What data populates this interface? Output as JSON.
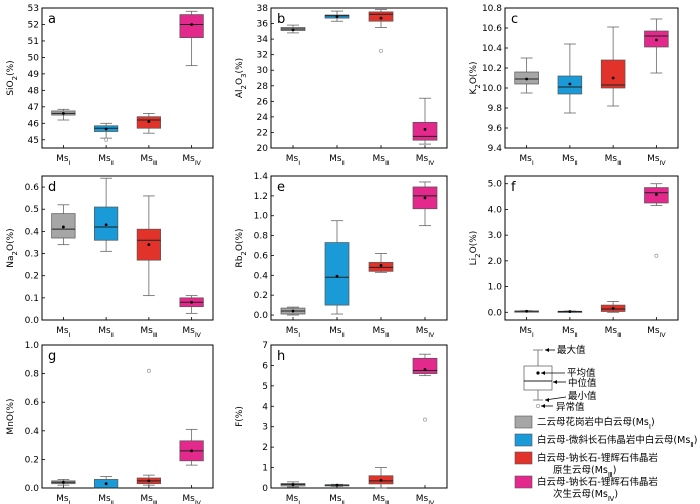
{
  "chart_data": {
    "type": "box",
    "categories": [
      {
        "main": "Ms",
        "sub": "Ⅰ"
      },
      {
        "main": "Ms",
        "sub": "Ⅱ"
      },
      {
        "main": "Ms",
        "sub": "Ⅲ"
      },
      {
        "main": "Ms",
        "sub": "Ⅳ"
      }
    ],
    "group_colors": [
      "#a6a6a6",
      "#1a9ad6",
      "#e2332b",
      "#e32a8c"
    ],
    "panels": [
      {
        "letter": "a",
        "ylabel": {
          "pre": "SiO",
          "sub": "2",
          "post": "(%)"
        },
        "ylim": [
          44.5,
          53
        ],
        "ticks": [
          45,
          46,
          47,
          48,
          49,
          50,
          51,
          52,
          53
        ],
        "boxes": [
          {
            "min": 46.2,
            "q1": 46.5,
            "median": 46.6,
            "q3": 46.75,
            "max": 46.85,
            "mean": 46.6,
            "outliers": []
          },
          {
            "min": 45.1,
            "q1": 45.5,
            "median": 45.7,
            "q3": 45.85,
            "max": 46.0,
            "mean": 45.65,
            "outliers": [
              45.0
            ]
          },
          {
            "min": 45.4,
            "q1": 45.7,
            "median": 46.2,
            "q3": 46.4,
            "max": 46.6,
            "mean": 46.1,
            "outliers": []
          },
          {
            "min": 49.5,
            "q1": 51.2,
            "median": 52.0,
            "q3": 52.6,
            "max": 52.8,
            "mean": 52.0,
            "outliers": []
          }
        ]
      },
      {
        "letter": "b",
        "ylabel": {
          "pre": "Al",
          "sub": "2",
          "post": "O",
          "sub2": "3",
          "post2": "(%)"
        },
        "ylim": [
          20,
          38
        ],
        "ticks": [
          20,
          22,
          24,
          26,
          28,
          30,
          32,
          34,
          36,
          38
        ],
        "boxes": [
          {
            "min": 34.8,
            "q1": 35.1,
            "median": 35.3,
            "q3": 35.5,
            "max": 35.8,
            "mean": 35.2,
            "outliers": []
          },
          {
            "min": 36.3,
            "q1": 36.7,
            "median": 37.0,
            "q3": 37.1,
            "max": 37.6,
            "mean": 36.9,
            "outliers": []
          },
          {
            "min": 35.5,
            "q1": 36.3,
            "median": 37.2,
            "q3": 37.5,
            "max": 37.8,
            "mean": 36.7,
            "outliers": [
              32.5
            ]
          },
          {
            "min": 20.5,
            "q1": 21.0,
            "median": 21.5,
            "q3": 23.3,
            "max": 26.4,
            "mean": 22.4,
            "outliers": []
          }
        ]
      },
      {
        "letter": "c",
        "ylabel": {
          "pre": "K",
          "sub": "2",
          "post": "O(%)"
        },
        "ylim": [
          9.4,
          10.8
        ],
        "ticks": [
          9.4,
          9.6,
          9.8,
          10.0,
          10.2,
          10.4,
          10.6,
          10.8
        ],
        "tick_decimals": 1,
        "boxes": [
          {
            "min": 9.95,
            "q1": 10.04,
            "median": 10.09,
            "q3": 10.16,
            "max": 10.3,
            "mean": 10.09,
            "outliers": []
          },
          {
            "min": 9.75,
            "q1": 9.94,
            "median": 10.01,
            "q3": 10.12,
            "max": 10.44,
            "mean": 10.04,
            "outliers": []
          },
          {
            "min": 9.82,
            "q1": 10.0,
            "median": 10.03,
            "q3": 10.28,
            "max": 10.61,
            "mean": 10.1,
            "outliers": []
          },
          {
            "min": 10.15,
            "q1": 10.41,
            "median": 10.52,
            "q3": 10.57,
            "max": 10.69,
            "mean": 10.48,
            "outliers": []
          }
        ]
      },
      {
        "letter": "d",
        "ylabel": {
          "pre": "Na",
          "sub": "2",
          "post": "O(%)"
        },
        "ylim": [
          0,
          0.65
        ],
        "ticks": [
          0.0,
          0.1,
          0.2,
          0.3,
          0.4,
          0.5,
          0.6
        ],
        "tick_decimals": 1,
        "boxes": [
          {
            "min": 0.34,
            "q1": 0.37,
            "median": 0.41,
            "q3": 0.48,
            "max": 0.52,
            "mean": 0.42,
            "outliers": []
          },
          {
            "min": 0.31,
            "q1": 0.36,
            "median": 0.42,
            "q3": 0.51,
            "max": 0.64,
            "mean": 0.43,
            "outliers": []
          },
          {
            "min": 0.11,
            "q1": 0.27,
            "median": 0.36,
            "q3": 0.41,
            "max": 0.56,
            "mean": 0.34,
            "outliers": []
          },
          {
            "min": 0.03,
            "q1": 0.06,
            "median": 0.08,
            "q3": 0.1,
            "max": 0.11,
            "mean": 0.08,
            "outliers": []
          }
        ]
      },
      {
        "letter": "e",
        "ylabel": {
          "pre": "Rb",
          "sub": "2",
          "post": "O(%)"
        },
        "ylim": [
          -0.05,
          1.4
        ],
        "ticks": [
          0.0,
          0.2,
          0.4,
          0.6,
          0.8,
          1.0,
          1.2,
          1.4
        ],
        "tick_decimals": 1,
        "boxes": [
          {
            "min": 0.0,
            "q1": 0.01,
            "median": 0.04,
            "q3": 0.07,
            "max": 0.08,
            "mean": 0.04,
            "outliers": []
          },
          {
            "min": 0.01,
            "q1": 0.1,
            "median": 0.38,
            "q3": 0.73,
            "max": 0.95,
            "mean": 0.39,
            "outliers": []
          },
          {
            "min": 0.43,
            "q1": 0.44,
            "median": 0.48,
            "q3": 0.53,
            "max": 0.62,
            "mean": 0.5,
            "outliers": []
          },
          {
            "min": 0.9,
            "q1": 1.07,
            "median": 1.2,
            "q3": 1.29,
            "max": 1.34,
            "mean": 1.18,
            "outliers": []
          }
        ]
      },
      {
        "letter": "f",
        "ylabel": {
          "pre": "Li",
          "sub": "2",
          "post": "O(%)"
        },
        "ylim": [
          -0.3,
          5.3
        ],
        "ticks": [
          0.0,
          1.0,
          2.0,
          3.0,
          4.0,
          5.0
        ],
        "tick_decimals": 1,
        "boxes": [
          {
            "min": 0.02,
            "q1": 0.03,
            "median": 0.04,
            "q3": 0.05,
            "max": 0.06,
            "mean": 0.04,
            "outliers": []
          },
          {
            "min": 0.01,
            "q1": 0.02,
            "median": 0.03,
            "q3": 0.04,
            "max": 0.05,
            "mean": 0.03,
            "outliers": []
          },
          {
            "min": 0.0,
            "q1": 0.03,
            "median": 0.13,
            "q3": 0.28,
            "max": 0.42,
            "mean": 0.15,
            "outliers": []
          },
          {
            "min": 4.15,
            "q1": 4.25,
            "median": 4.65,
            "q3": 4.85,
            "max": 5.0,
            "mean": 4.58,
            "outliers": [
              2.2
            ]
          }
        ]
      },
      {
        "letter": "g",
        "ylabel": {
          "pre": "MnO(%)"
        },
        "ylim": [
          0,
          1.0
        ],
        "ticks": [
          0.0,
          0.2,
          0.4,
          0.6,
          0.8,
          1.0
        ],
        "tick_decimals": 1,
        "boxes": [
          {
            "min": 0.02,
            "q1": 0.03,
            "median": 0.04,
            "q3": 0.05,
            "max": 0.06,
            "mean": 0.04,
            "outliers": []
          },
          {
            "min": 0.0,
            "q1": 0.0,
            "median": 0.0,
            "q3": 0.06,
            "max": 0.08,
            "mean": 0.03,
            "outliers": []
          },
          {
            "min": 0.02,
            "q1": 0.03,
            "median": 0.05,
            "q3": 0.07,
            "max": 0.09,
            "mean": 0.05,
            "outliers": [
              0.82
            ]
          },
          {
            "min": 0.16,
            "q1": 0.19,
            "median": 0.26,
            "q3": 0.33,
            "max": 0.41,
            "mean": 0.26,
            "outliers": []
          }
        ]
      },
      {
        "letter": "h",
        "ylabel": {
          "pre": "F(%)"
        },
        "ylim": [
          0,
          7
        ],
        "ticks": [
          0,
          1,
          2,
          3,
          4,
          5,
          6,
          7
        ],
        "tick_decimals": 0,
        "boxes": [
          {
            "min": 0.05,
            "q1": 0.1,
            "median": 0.18,
            "q3": 0.22,
            "max": 0.3,
            "mean": 0.17,
            "outliers": []
          },
          {
            "min": 0.08,
            "q1": 0.12,
            "median": 0.14,
            "q3": 0.16,
            "max": 0.18,
            "mean": 0.14,
            "outliers": []
          },
          {
            "min": 0.0,
            "q1": 0.2,
            "median": 0.35,
            "q3": 0.6,
            "max": 1.0,
            "mean": 0.38,
            "outliers": []
          },
          {
            "min": 5.5,
            "q1": 5.6,
            "median": 5.75,
            "q3": 6.35,
            "max": 6.55,
            "mean": 5.8,
            "outliers": [
              3.35
            ]
          }
        ]
      }
    ],
    "key": {
      "labels": [
        "最大值",
        "平均值",
        "中位值",
        "最小值",
        "异常值"
      ]
    },
    "legend": [
      {
        "line1": "二云母花岗岩中白云母(Ms",
        "sub1": "Ⅰ",
        "end1": ")",
        "color": "#a6a6a6"
      },
      {
        "line1": "白云母-微斜长石伟晶岩中白云母(Ms",
        "sub1": "Ⅱ",
        "end1": ")",
        "color": "#1a9ad6"
      },
      {
        "line1": "白云母-钠长石-锂辉石伟晶岩",
        "line2": "原生云母(Ms",
        "sub2": "Ⅲ",
        "end2": ")",
        "color": "#e2332b"
      },
      {
        "line1": "白云母-钠长石-锂辉石伟晶岩",
        "line2": "次生云母(Ms",
        "sub2": "Ⅳ",
        "end2": ")",
        "color": "#e32a8c"
      }
    ]
  }
}
